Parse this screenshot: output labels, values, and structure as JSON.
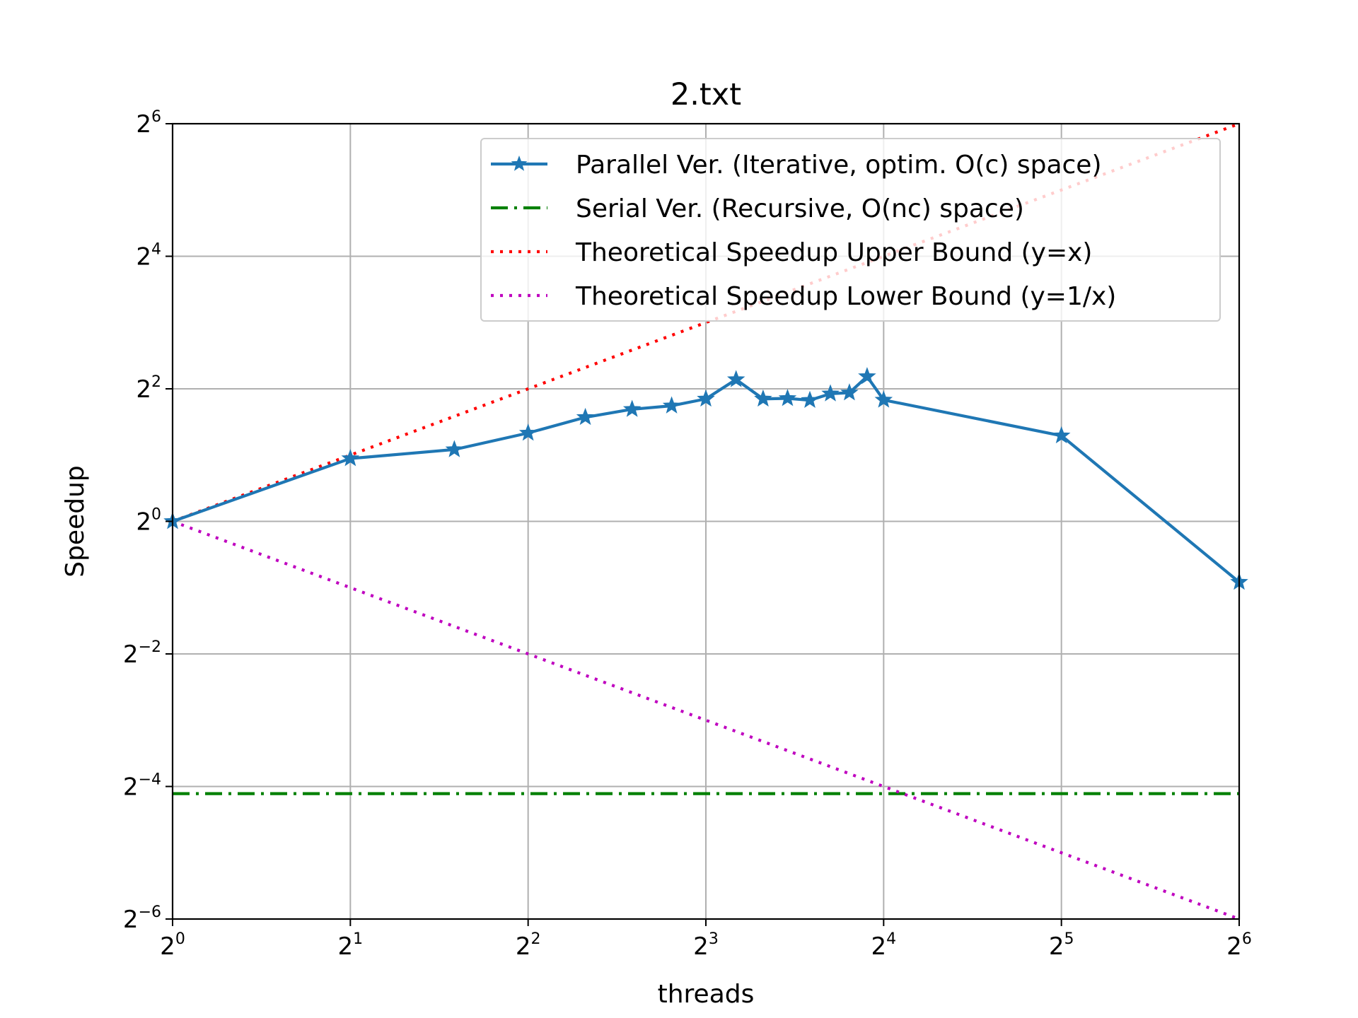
{
  "chart_data": {
    "type": "line",
    "title": "2.txt",
    "xlabel": "threads",
    "ylabel": "Speedup",
    "x_scale": "log2",
    "y_scale": "log2",
    "xlim": [
      1,
      64
    ],
    "ylim": [
      0.015625,
      64
    ],
    "x_ticks": [
      {
        "base": "2",
        "exp": "0",
        "value": 1
      },
      {
        "base": "2",
        "exp": "1",
        "value": 2
      },
      {
        "base": "2",
        "exp": "2",
        "value": 4
      },
      {
        "base": "2",
        "exp": "3",
        "value": 8
      },
      {
        "base": "2",
        "exp": "4",
        "value": 16
      },
      {
        "base": "2",
        "exp": "5",
        "value": 32
      },
      {
        "base": "2",
        "exp": "6",
        "value": 64
      }
    ],
    "y_ticks": [
      {
        "base": "2",
        "exp": "−6",
        "value": 0.015625
      },
      {
        "base": "2",
        "exp": "−4",
        "value": 0.0625
      },
      {
        "base": "2",
        "exp": "−2",
        "value": 0.25
      },
      {
        "base": "2",
        "exp": "0",
        "value": 1
      },
      {
        "base": "2",
        "exp": "2",
        "value": 4
      },
      {
        "base": "2",
        "exp": "4",
        "value": 16
      },
      {
        "base": "2",
        "exp": "6",
        "value": 64
      }
    ],
    "grid": true,
    "legend_position": "top-right",
    "series": [
      {
        "name": "Parallel Ver. (Iterative, optim. O(c) space)",
        "color": "#1f77b4",
        "style": "solid",
        "marker": "star",
        "x": [
          1,
          2,
          3,
          4,
          5,
          6,
          7,
          8,
          9,
          10,
          11,
          12,
          13,
          14,
          15,
          16,
          32,
          64
        ],
        "y": [
          1,
          1.93,
          2.12,
          2.52,
          2.97,
          3.23,
          3.35,
          3.6,
          4.41,
          3.6,
          3.62,
          3.55,
          3.8,
          3.84,
          4.55,
          3.56,
          2.45,
          0.53
        ]
      },
      {
        "name": "Serial Ver. (Recursive, O(nc) space)",
        "color": "#008000",
        "style": "dashdot",
        "marker": "none",
        "x": [
          1,
          64
        ],
        "y": [
          0.058,
          0.058
        ]
      },
      {
        "name": "Theoretical Speedup Upper Bound (y=x)",
        "color": "#ff0000",
        "style": "dotted",
        "marker": "none",
        "x": [
          1,
          64
        ],
        "y": [
          1,
          64
        ]
      },
      {
        "name": "Theoretical Speedup Lower Bound (y=1/x)",
        "color": "#bf00bf",
        "style": "dotted",
        "marker": "none",
        "x": [
          1,
          64
        ],
        "y": [
          1,
          0.015625
        ]
      }
    ]
  }
}
